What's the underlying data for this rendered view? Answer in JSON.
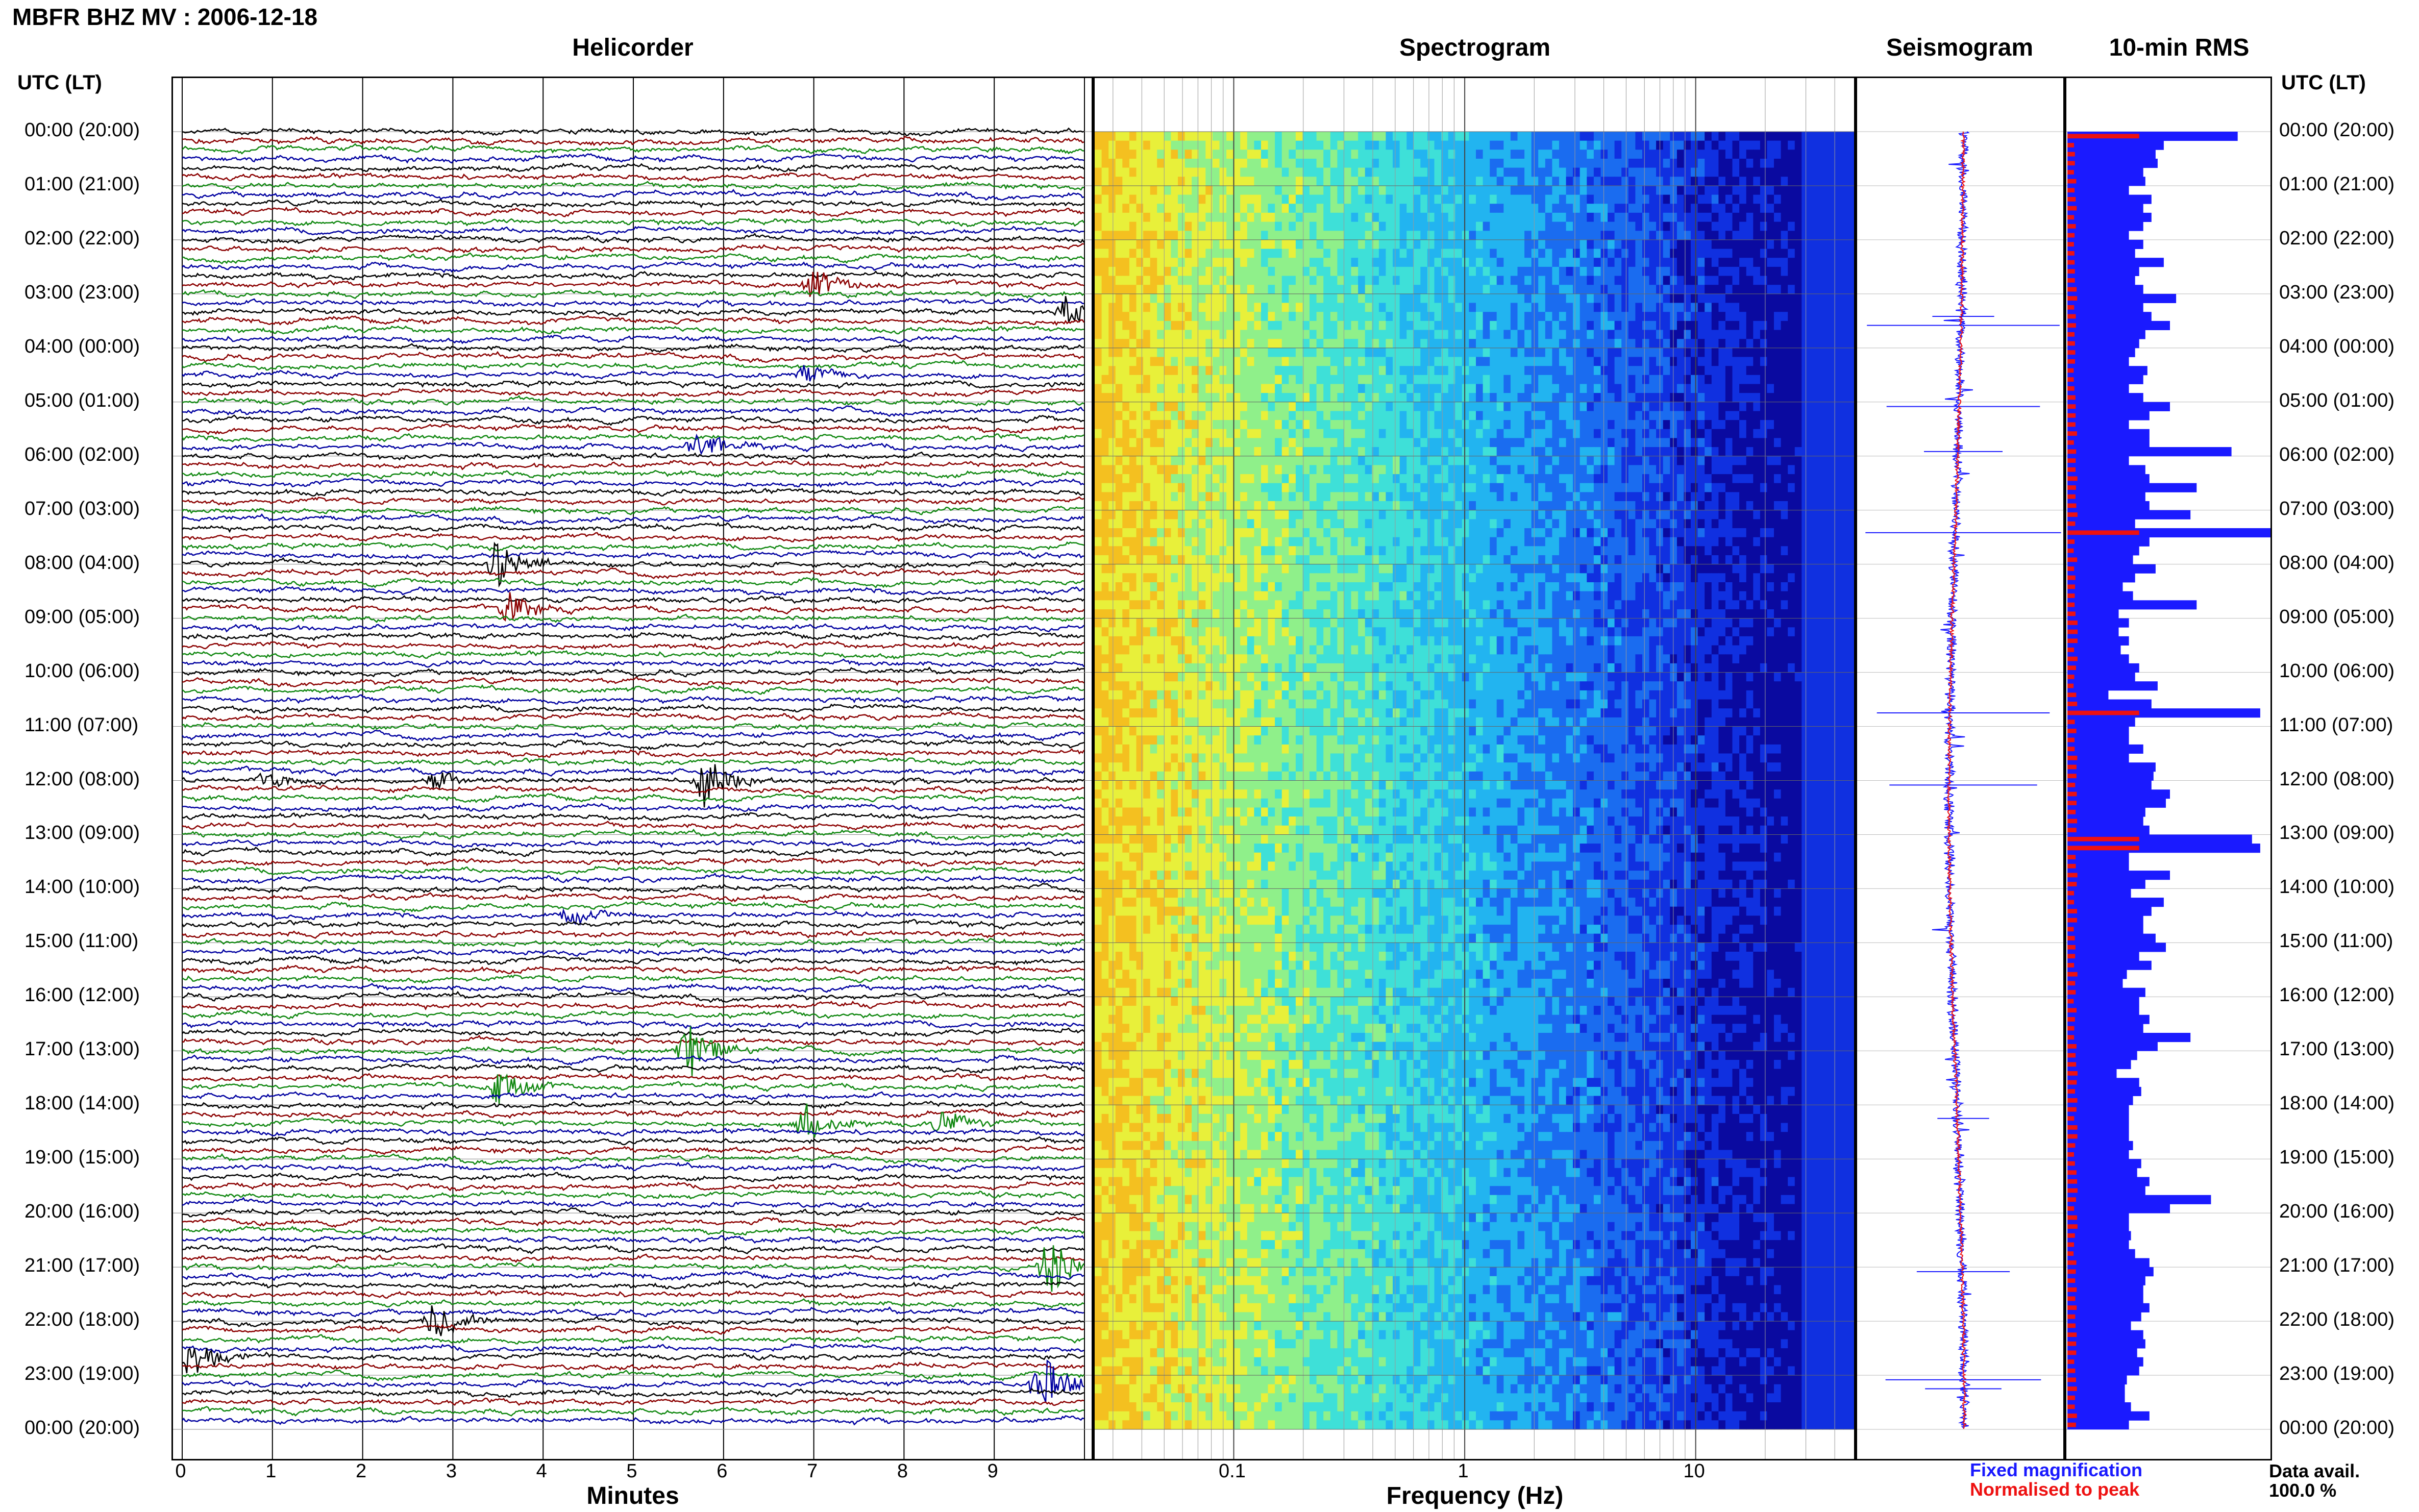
{
  "header": {
    "title": "MBFR BHZ MV : 2006-12-18"
  },
  "panels": {
    "helicorder": "Helicorder",
    "spectrogram": "Spectrogram",
    "seismogram": "Seismogram",
    "rms": "10-min RMS"
  },
  "y_axis_label": "UTC (LT)",
  "x_axis_labels": {
    "helicorder": "Minutes",
    "spectrogram": "Frequency (Hz)"
  },
  "legend": {
    "fixed": "Fixed magnification",
    "normalised": "Normalised to peak",
    "fixed_color": "#1a1aff",
    "normalised_color": "#ee1111"
  },
  "data_availability": {
    "label": "Data avail.",
    "value": "100.0 %"
  },
  "chart_data": [
    {
      "type": "line",
      "panel": "Helicorder",
      "xlabel": "Minutes",
      "ylabel": "UTC (LT)",
      "xlim": [
        0,
        10
      ],
      "x_ticks": [
        "0",
        "1",
        "2",
        "3",
        "4",
        "5",
        "6",
        "7",
        "8",
        "9"
      ],
      "time_ticks": [
        "00:00 (20:00)",
        "01:00 (21:00)",
        "02:00 (22:00)",
        "03:00 (23:00)",
        "04:00 (00:00)",
        "05:00 (01:00)",
        "06:00 (02:00)",
        "07:00 (03:00)",
        "08:00 (04:00)",
        "09:00 (05:00)",
        "10:00 (06:00)",
        "11:00 (07:00)",
        "12:00 (08:00)",
        "13:00 (09:00)",
        "14:00 (10:00)",
        "15:00 (11:00)",
        "16:00 (12:00)",
        "17:00 (13:00)",
        "18:00 (14:00)",
        "19:00 (15:00)",
        "20:00 (16:00)",
        "21:00 (17:00)",
        "22:00 (18:00)",
        "23:00 (19:00)",
        "00:00 (20:00)"
      ],
      "trace_colors": [
        "#000000",
        "#8b0000",
        "#118811",
        "#0000a0"
      ],
      "events": [
        {
          "row": 17,
          "minute": 7.0,
          "amp": 1.6
        },
        {
          "row": 20,
          "minute": 9.8,
          "amp": 1.8
        },
        {
          "row": 27,
          "minute": 6.9,
          "amp": 0.9
        },
        {
          "row": 35,
          "minute": 5.7,
          "amp": 1.7
        },
        {
          "row": 48,
          "minute": 3.5,
          "amp": 2.6
        },
        {
          "row": 53,
          "minute": 3.6,
          "amp": 1.6
        },
        {
          "row": 72,
          "minute": 5.8,
          "amp": 2.8
        },
        {
          "row": 72,
          "minute": 2.8,
          "amp": 0.9
        },
        {
          "row": 72,
          "minute": 0.9,
          "amp": 0.8
        },
        {
          "row": 87,
          "minute": 4.3,
          "amp": 0.8
        },
        {
          "row": 102,
          "minute": 5.6,
          "amp": 3.1
        },
        {
          "row": 106,
          "minute": 3.5,
          "amp": 2.0
        },
        {
          "row": 110,
          "minute": 6.9,
          "amp": 2.2
        },
        {
          "row": 110,
          "minute": 8.4,
          "amp": 1.2
        },
        {
          "row": 126,
          "minute": 9.6,
          "amp": 3.0
        },
        {
          "row": 132,
          "minute": 2.8,
          "amp": 2.4
        },
        {
          "row": 136,
          "minute": 0.1,
          "amp": 2.4
        },
        {
          "row": 139,
          "minute": 9.5,
          "amp": 3.4
        }
      ]
    },
    {
      "type": "heatmap",
      "panel": "Spectrogram",
      "xlabel": "Frequency (Hz)",
      "x_scale": "log",
      "xlim": [
        0.025,
        50
      ],
      "x_ticks": [
        "0.1",
        "1",
        "10"
      ]
    },
    {
      "type": "line",
      "panel": "Seismogram",
      "series": [
        {
          "name": "Fixed magnification",
          "color": "#1a1aff"
        },
        {
          "name": "Normalised to peak",
          "color": "#ee1111"
        }
      ]
    },
    {
      "type": "bar",
      "panel": "10-min RMS",
      "orientation": "horizontal",
      "series": [
        {
          "name": "Fixed magnification",
          "color": "#1a1aff",
          "values": [
            0.83,
            0.47,
            0.43,
            0.44,
            0.37,
            0.38,
            0.3,
            0.41,
            0.37,
            0.41,
            0.37,
            0.3,
            0.37,
            0.33,
            0.47,
            0.35,
            0.33,
            0.37,
            0.53,
            0.37,
            0.41,
            0.5,
            0.38,
            0.35,
            0.33,
            0.3,
            0.39,
            0.37,
            0.3,
            0.37,
            0.5,
            0.4,
            0.3,
            0.4,
            0.4,
            0.8,
            0.3,
            0.38,
            0.4,
            0.63,
            0.38,
            0.4,
            0.6,
            0.33,
            1.0,
            0.4,
            0.35,
            0.32,
            0.43,
            0.33,
            0.27,
            0.32,
            0.63,
            0.25,
            0.3,
            0.25,
            0.3,
            0.26,
            0.3,
            0.35,
            0.33,
            0.44,
            0.2,
            0.41,
            0.94,
            0.33,
            0.3,
            0.3,
            0.37,
            0.3,
            0.43,
            0.42,
            0.41,
            0.5,
            0.48,
            0.38,
            0.37,
            0.4,
            0.9,
            0.94,
            0.3,
            0.3,
            0.5,
            0.38,
            0.31,
            0.47,
            0.41,
            0.37,
            0.37,
            0.43,
            0.48,
            0.35,
            0.41,
            0.29,
            0.27,
            0.38,
            0.35,
            0.35,
            0.4,
            0.37,
            0.6,
            0.44,
            0.34,
            0.31,
            0.24,
            0.35,
            0.36,
            0.32,
            0.3,
            0.3,
            0.3,
            0.3,
            0.32,
            0.3,
            0.36,
            0.34,
            0.4,
            0.38,
            0.7,
            0.5,
            0.3,
            0.3,
            0.31,
            0.3,
            0.33,
            0.4,
            0.42,
            0.38,
            0.37,
            0.37,
            0.4,
            0.36,
            0.31,
            0.37,
            0.38,
            0.34,
            0.37,
            0.35,
            0.29,
            0.28,
            0.28,
            0.31,
            0.4,
            0.3
          ]
        }
      ]
    }
  ]
}
